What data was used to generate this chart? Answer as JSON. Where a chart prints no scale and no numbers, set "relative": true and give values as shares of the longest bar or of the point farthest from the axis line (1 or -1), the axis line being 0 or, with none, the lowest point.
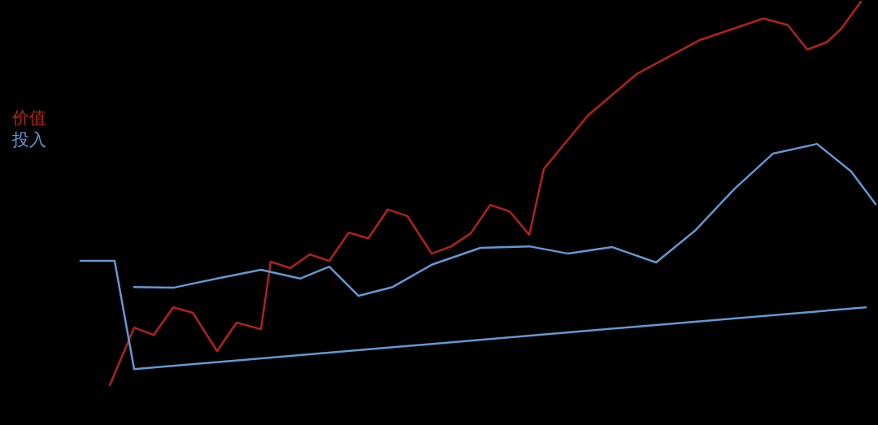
{
  "chart_data": {
    "type": "line",
    "relative": true,
    "legend": "left",
    "marker": "none",
    "line_style": "solid",
    "categories": [
      null,
      null,
      null,
      null,
      null,
      null,
      null,
      null,
      null,
      null,
      null,
      null,
      null,
      null,
      null,
      null,
      null,
      null,
      null,
      null,
      null,
      null,
      null,
      null,
      null,
      null,
      null,
      null,
      null,
      null,
      null,
      null,
      null,
      null,
      null,
      null,
      null,
      null,
      null,
      null,
      null,
      null,
      null,
      null,
      null,
      null,
      null,
      null,
      null,
      null,
      null,
      null,
      null,
      null,
      null,
      null,
      null,
      null,
      null,
      null,
      null,
      null,
      null,
      null,
      null,
      null,
      null,
      null,
      null,
      null,
      null,
      null,
      null,
      null,
      null,
      null,
      null,
      null,
      null,
      null,
      null,
      null,
      null,
      null,
      null,
      null,
      null,
      null,
      null,
      null,
      null,
      null,
      null,
      null,
      null,
      null,
      null,
      null,
      null,
      null,
      null,
      null,
      null,
      null,
      null,
      null,
      null,
      null,
      null,
      null,
      null,
      null,
      null,
      null,
      null,
      null,
      null,
      null,
      null,
      null,
      null,
      null,
      null,
      null,
      null,
      null,
      null,
      null,
      null,
      null,
      null,
      null,
      null,
      null,
      null,
      null,
      null,
      null,
      null,
      null,
      null,
      null,
      null,
      null,
      null,
      null,
      null,
      null,
      null,
      null,
      null,
      null,
      null,
      null,
      null,
      null,
      null,
      null,
      null,
      null,
      null,
      null,
      null,
      null
    ],
    "series": [
      {
        "name": "价值",
        "color": "#b3221b",
        "values": [
          null,
          null,
          null,
          null,
          null,
          null,
          0,
          null,
          null,
          null,
          null,
          0.15,
          null,
          null,
          null,
          0.131,
          null,
          null,
          null,
          0.203,
          null,
          null,
          null,
          0.189,
          null,
          null,
          null,
          null,
          0.089,
          null,
          null,
          null,
          0.163,
          null,
          null,
          null,
          null,
          0.146,
          null,
          0.322,
          null,
          null,
          null,
          0.305,
          null,
          null,
          null,
          0.341,
          null,
          null,
          null,
          0.324,
          null,
          null,
          null,
          0.398,
          null,
          null,
          null,
          0.383,
          null,
          null,
          null,
          0.458,
          null,
          null,
          null,
          0.441,
          null,
          null,
          null,
          null,
          0.343,
          null,
          null,
          null,
          0.362,
          null,
          null,
          null,
          0.396,
          null,
          null,
          null,
          0.47,
          null,
          null,
          null,
          0.453,
          null,
          null,
          null,
          0.392,
          null,
          null,
          0.564,
          null,
          null,
          null,
          null,
          null,
          null,
          null,
          null,
          0.703,
          null,
          null,
          null,
          null,
          null,
          null,
          null,
          null,
          null,
          0.811,
          null,
          null,
          null,
          null,
          null,
          null,
          null,
          null,
          null,
          null,
          null,
          null,
          0.9,
          null,
          null,
          null,
          null,
          null,
          null,
          null,
          null,
          null,
          null,
          null,
          null,
          0.956,
          null,
          null,
          null,
          null,
          0.939,
          null,
          null,
          null,
          0.875,
          null,
          null,
          null,
          0.894,
          null,
          null,
          0.93,
          null,
          null,
          null,
          1,
          null,
          null,
          null
        ]
      },
      {
        "name": "投入",
        "color": "#6399d3",
        "values": [
          null,
          null,
          null,
          null,
          null,
          null,
          null,
          null,
          null,
          null,
          null,
          0.256,
          null,
          null,
          null,
          null,
          null,
          null,
          null,
          0.254,
          null,
          null,
          null,
          null,
          null,
          null,
          null,
          null,
          0.278,
          null,
          null,
          null,
          null,
          null,
          null,
          null,
          null,
          0.301,
          null,
          null,
          null,
          null,
          null,
          null,
          null,
          0.278,
          null,
          null,
          null,
          null,
          null,
          0.309,
          null,
          null,
          null,
          null,
          null,
          0.233,
          null,
          null,
          null,
          null,
          null,
          null,
          0.256,
          null,
          null,
          null,
          null,
          null,
          null,
          null,
          0.314,
          null,
          null,
          null,
          null,
          null,
          null,
          null,
          null,
          null,
          0.358,
          null,
          null,
          null,
          null,
          null,
          null,
          null,
          null,
          null,
          0.362,
          null,
          null,
          null,
          null,
          null,
          null,
          null,
          0.343,
          null,
          null,
          null,
          null,
          null,
          null,
          null,
          null,
          0.36,
          null,
          null,
          null,
          null,
          null,
          null,
          null,
          null,
          0.32,
          null,
          null,
          null,
          null,
          null,
          null,
          null,
          0.403,
          null,
          null,
          null,
          null,
          null,
          null,
          null,
          0.511,
          null,
          null,
          null,
          null,
          null,
          null,
          null,
          0.604,
          null,
          null,
          null,
          null,
          null,
          null,
          null,
          null,
          0.629,
          null,
          null,
          null,
          null,
          null,
          null,
          0.557,
          null,
          null,
          null,
          null,
          0.472
        ]
      },
      {
        "color": "#6399d3",
        "values": [
          0.324,
          null,
          null,
          null,
          null,
          null,
          null,
          0.324,
          null,
          null,
          null,
          0.042,
          null,
          null,
          null,
          null,
          null,
          null,
          null,
          null,
          null,
          null,
          null,
          null,
          null,
          null,
          null,
          null,
          null,
          null,
          null,
          null,
          null,
          null,
          null,
          null,
          null,
          null,
          null,
          null,
          null,
          null,
          null,
          null,
          null,
          null,
          null,
          null,
          null,
          null,
          null,
          null,
          null,
          null,
          null,
          null,
          null,
          null,
          null,
          null,
          null,
          null,
          null,
          null,
          null,
          null,
          null,
          null,
          null,
          null,
          null,
          null,
          null,
          null,
          null,
          null,
          null,
          null,
          null,
          null,
          null,
          null,
          null,
          null,
          null,
          null,
          null,
          null,
          null,
          null,
          null,
          null,
          null,
          null,
          null,
          null,
          null,
          null,
          null,
          null,
          null,
          null,
          null,
          null,
          null,
          null,
          null,
          null,
          null,
          null,
          null,
          null,
          null,
          null,
          null,
          null,
          null,
          null,
          null,
          null,
          null,
          null,
          null,
          null,
          null,
          null,
          null,
          null,
          null,
          null,
          null,
          null,
          null,
          null,
          null,
          null,
          null,
          null,
          null,
          null,
          null,
          null,
          null,
          null,
          null,
          null,
          null,
          null,
          null,
          null,
          null,
          null,
          null,
          null,
          null,
          null,
          null,
          null,
          null,
          null,
          null,
          0.203,
          null,
          null
        ]
      }
    ]
  }
}
